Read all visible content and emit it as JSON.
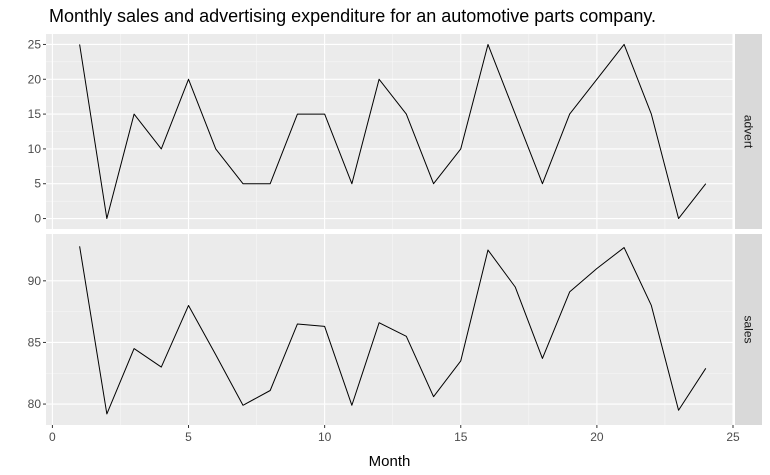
{
  "chart_data": {
    "type": "line",
    "title": "Monthly sales and advertising expenditure for an automotive parts company.",
    "xlabel": "Month",
    "ylabel": "",
    "xlim": [
      0,
      25
    ],
    "x_ticks": [
      0,
      5,
      10,
      15,
      20,
      25
    ],
    "grid": true,
    "line_color": "#000000",
    "panel_background": "#ebebeb",
    "strip_background": "#d9d9d9",
    "x": [
      1,
      2,
      3,
      4,
      5,
      6,
      7,
      8,
      9,
      10,
      11,
      12,
      13,
      14,
      15,
      16,
      17,
      18,
      19,
      20,
      21,
      22,
      23,
      24
    ],
    "facets": [
      {
        "name": "advert",
        "ylim": [
          -1.5,
          26.5
        ],
        "y_ticks": [
          0,
          5,
          10,
          15,
          20,
          25
        ],
        "values": [
          25,
          0,
          15,
          10,
          20,
          10,
          5,
          5,
          15,
          15,
          5,
          20,
          15,
          5,
          10,
          25,
          15,
          5,
          15,
          20,
          25,
          15,
          0,
          5
        ]
      },
      {
        "name": "sales",
        "ylim": [
          78.3,
          93.8
        ],
        "y_ticks": [
          80,
          85,
          90
        ],
        "values": [
          92.8,
          79.2,
          84.5,
          83.0,
          88.0,
          84.0,
          79.9,
          81.1,
          86.5,
          86.3,
          79.9,
          86.6,
          85.5,
          80.6,
          83.5,
          92.5,
          89.5,
          83.7,
          89.1,
          91.0,
          92.7,
          88.0,
          79.5,
          82.9
        ]
      }
    ]
  }
}
